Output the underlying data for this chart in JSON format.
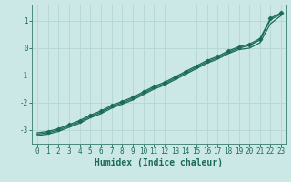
{
  "title": "",
  "xlabel": "Humidex (Indice chaleur)",
  "ylabel": "",
  "background_color": "#cce8e6",
  "grid_color": "#b8d8d6",
  "line_color": "#1a6b5a",
  "spine_color": "#4a8a7a",
  "xlim": [
    -0.5,
    23.5
  ],
  "ylim": [
    -3.5,
    1.6
  ],
  "yticks": [
    -3,
    -2,
    -1,
    0,
    1
  ],
  "xticks": [
    0,
    1,
    2,
    3,
    4,
    5,
    6,
    7,
    8,
    9,
    10,
    11,
    12,
    13,
    14,
    15,
    16,
    17,
    18,
    19,
    20,
    21,
    22,
    23
  ],
  "line1_x": [
    0,
    1,
    2,
    3,
    4,
    5,
    6,
    7,
    8,
    9,
    10,
    11,
    12,
    13,
    14,
    15,
    16,
    17,
    18,
    19,
    20,
    21,
    22,
    23
  ],
  "line1_y": [
    -3.15,
    -3.1,
    -3.0,
    -2.85,
    -2.7,
    -2.5,
    -2.35,
    -2.15,
    -2.0,
    -1.85,
    -1.65,
    -1.45,
    -1.3,
    -1.1,
    -0.9,
    -0.7,
    -0.5,
    -0.35,
    -0.15,
    0.0,
    0.1,
    0.3,
    1.05,
    1.25
  ],
  "line2_x": [
    0,
    1,
    2,
    3,
    4,
    5,
    6,
    7,
    8,
    9,
    10,
    11,
    12,
    13,
    14,
    15,
    16,
    17,
    18,
    19,
    20,
    21,
    22,
    23
  ],
  "line2_y": [
    -3.2,
    -3.15,
    -3.05,
    -2.9,
    -2.75,
    -2.55,
    -2.4,
    -2.2,
    -2.05,
    -1.9,
    -1.7,
    -1.5,
    -1.35,
    -1.15,
    -0.95,
    -0.75,
    -0.55,
    -0.4,
    -0.2,
    -0.05,
    0.0,
    0.2,
    0.9,
    1.2
  ],
  "line3_x": [
    0,
    1,
    2,
    3,
    4,
    5,
    6,
    7,
    8,
    9,
    10,
    11,
    12,
    13,
    14,
    15,
    16,
    17,
    18,
    19,
    20,
    21,
    22,
    23
  ],
  "line3_y": [
    -3.1,
    -3.05,
    -2.95,
    -2.8,
    -2.65,
    -2.45,
    -2.3,
    -2.1,
    -1.95,
    -1.8,
    -1.6,
    -1.4,
    -1.25,
    -1.05,
    -0.85,
    -0.65,
    -0.45,
    -0.3,
    -0.1,
    0.05,
    0.15,
    0.35,
    1.1,
    1.3
  ],
  "marker_x": [
    1,
    2,
    3,
    4,
    5,
    6,
    7,
    8,
    9,
    10,
    11,
    12,
    13,
    14,
    15,
    16,
    17,
    18,
    19,
    20,
    21,
    22,
    23
  ],
  "marker_y": [
    -3.05,
    -2.95,
    -2.8,
    -2.65,
    -2.45,
    -2.3,
    -2.1,
    -1.95,
    -1.8,
    -1.6,
    -1.4,
    -1.25,
    -1.05,
    -0.85,
    -0.65,
    -0.45,
    -0.3,
    -0.1,
    0.05,
    0.15,
    0.35,
    1.1,
    1.3
  ],
  "tick_fontsize": 5.5,
  "label_fontsize": 7,
  "line_width": 0.9
}
